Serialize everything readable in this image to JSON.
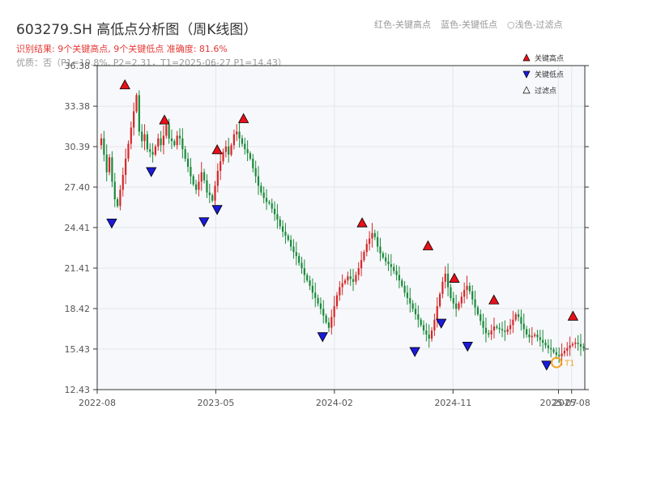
{
  "header": {
    "title": "603279.SH 高低点分析图（周K线图）",
    "summary": "识别结果: 9个关键高点, 9个关键低点   准确度: 81.6%",
    "detail": "优质：否（P1=19.8%, P2=2.31，T1=2025-06-27 P1=14.43）",
    "legend_items": [
      "红色-关键高点",
      "蓝色-关键低点",
      "○浅色-过滤点"
    ]
  },
  "colors": {
    "up": "#d62728",
    "down": "#1b8a3a",
    "high_marker": "#e8101a",
    "low_marker": "#1a1ad9",
    "t1_marker": "#f5a623",
    "grid": "#e3e6ea",
    "plot_bg": "#f7f8fb"
  },
  "chart_data": {
    "type": "candlestick",
    "x_ticks": [
      "2022-08",
      "2023-05",
      "2024-02",
      "2024-11",
      "2025-07",
      "2025-08"
    ],
    "y_ticks": [
      "12.43",
      "15.43",
      "18.42",
      "21.41",
      "24.41",
      "27.40",
      "30.39",
      "33.38",
      "36.38"
    ],
    "ylim": [
      12.43,
      36.38
    ],
    "legend": [
      "关键高点",
      "关键低点",
      "过滤点"
    ],
    "series_prices": [
      30.5,
      31.0,
      29.8,
      28.5,
      29.6,
      27.8,
      26.5,
      26.0,
      27.2,
      28.3,
      29.5,
      30.6,
      31.8,
      33.0,
      34.2,
      31.5,
      30.8,
      31.3,
      30.2,
      30.0,
      29.8,
      30.4,
      31.0,
      30.5,
      31.2,
      32.0,
      31.0,
      30.8,
      30.5,
      31.2,
      31.0,
      30.2,
      29.5,
      28.9,
      28.2,
      27.6,
      27.2,
      27.8,
      28.5,
      27.9,
      27.0,
      26.8,
      26.4,
      27.5,
      28.6,
      29.3,
      30.0,
      30.4,
      29.8,
      30.5,
      31.3,
      31.5,
      31.0,
      30.6,
      30.2,
      29.9,
      29.5,
      28.8,
      28.2,
      27.5,
      27.0,
      26.6,
      26.3,
      26.2,
      25.8,
      25.4,
      25.0,
      24.5,
      24.1,
      23.8,
      23.5,
      23.0,
      22.6,
      22.3,
      21.8,
      21.4,
      20.9,
      20.5,
      20.1,
      19.6,
      19.2,
      18.8,
      18.4,
      17.9,
      17.4,
      17.0,
      17.8,
      18.6,
      19.4,
      20.0,
      20.3,
      20.5,
      20.8,
      20.6,
      20.4,
      20.9,
      21.4,
      22.0,
      22.6,
      23.2,
      23.6,
      24.0,
      23.7,
      23.0,
      22.5,
      22.2,
      21.9,
      21.7,
      21.5,
      21.2,
      20.9,
      20.5,
      20.1,
      19.6,
      19.2,
      18.8,
      18.4,
      18.0,
      17.6,
      17.2,
      16.8,
      16.5,
      16.2,
      16.8,
      17.6,
      18.6,
      19.5,
      20.4,
      21.0,
      20.0,
      19.2,
      18.8,
      18.4,
      18.8,
      19.3,
      19.8,
      20.1,
      19.7,
      19.1,
      18.5,
      18.0,
      17.5,
      17.0,
      16.6,
      16.5,
      16.8,
      17.1,
      17.0,
      16.9,
      16.8,
      16.7,
      16.9,
      17.2,
      17.6,
      18.0,
      17.8,
      17.3,
      16.9,
      16.5,
      16.3,
      16.4,
      16.5,
      16.3,
      16.1,
      15.9,
      15.7,
      15.5,
      15.4,
      15.2,
      15.0,
      14.9,
      15.1,
      15.3,
      15.5,
      15.7,
      15.8,
      15.9,
      15.8,
      15.6,
      15.5
    ],
    "key_highs": [
      {
        "date": "2022-10",
        "price": 34.6
      },
      {
        "date": "2023-01",
        "price": 32.0
      },
      {
        "date": "2023-05",
        "price": 29.8
      },
      {
        "date": "2023-07",
        "price": 32.1
      },
      {
        "date": "2024-04",
        "price": 24.4
      },
      {
        "date": "2024-09",
        "price": 22.7
      },
      {
        "date": "2024-11",
        "price": 20.3
      },
      {
        "date": "2025-02",
        "price": 18.7
      },
      {
        "date": "2025-08",
        "price": 17.5
      }
    ],
    "key_lows": [
      {
        "date": "2022-09",
        "price": 25.1
      },
      {
        "date": "2022-12",
        "price": 28.9
      },
      {
        "date": "2023-04",
        "price": 25.2
      },
      {
        "date": "2023-05",
        "price": 26.1
      },
      {
        "date": "2024-01",
        "price": 16.7
      },
      {
        "date": "2024-08",
        "price": 15.6
      },
      {
        "date": "2024-10",
        "price": 17.7
      },
      {
        "date": "2024-12",
        "price": 16.0
      },
      {
        "date": "2025-06",
        "price": 14.6
      }
    ],
    "t1": {
      "label": "T1",
      "date": "2025-06-27",
      "price": 14.43
    }
  }
}
